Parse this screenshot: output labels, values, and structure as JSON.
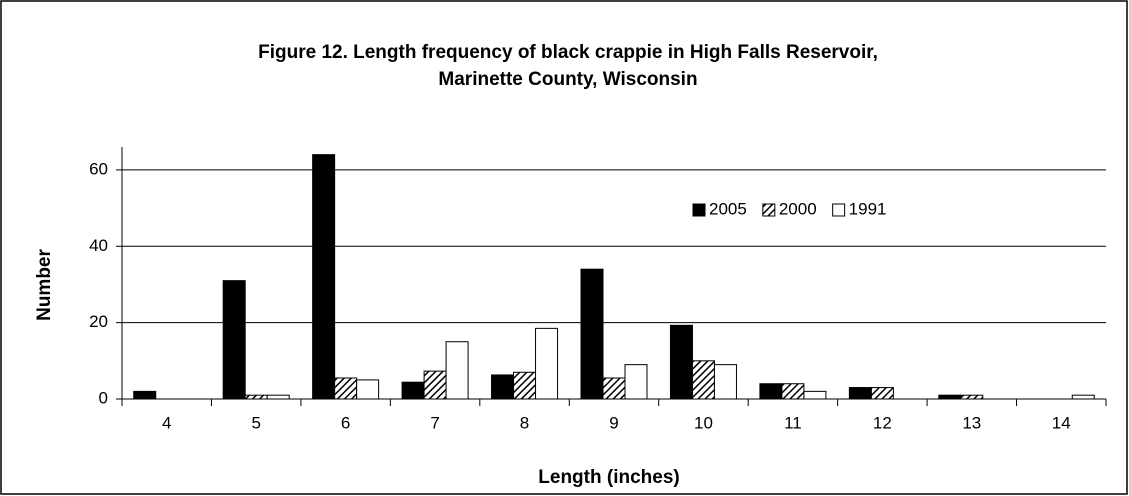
{
  "chart_data": {
    "type": "bar",
    "title": [
      "Figure 12. Length frequency of black crappie in High Falls Reservoir,",
      "Marinette County, Wisconsin"
    ],
    "x_label": "Length (inches)",
    "y_label": "Number",
    "categories": [
      4,
      5,
      6,
      7,
      8,
      9,
      10,
      11,
      12,
      13,
      14
    ],
    "series": [
      {
        "name": "2005",
        "color": "#000000",
        "pattern": "solid",
        "values": [
          2,
          31,
          64,
          4.4,
          6.3,
          34,
          19.3,
          4,
          3,
          1,
          0
        ]
      },
      {
        "name": "2000",
        "color": "#000000",
        "pattern": "hatch",
        "values": [
          0,
          1,
          5.5,
          7.3,
          7,
          5.5,
          10,
          4,
          3,
          1,
          0
        ]
      },
      {
        "name": "1991",
        "color": "#ffffff",
        "pattern": "solid",
        "values": [
          0,
          1,
          5,
          15,
          18.5,
          9,
          9,
          2,
          0,
          0,
          1
        ]
      }
    ],
    "ylim": [
      0,
      66
    ],
    "yticks": [
      0,
      20,
      40,
      60
    ],
    "grid": true,
    "legend": "upper right"
  }
}
